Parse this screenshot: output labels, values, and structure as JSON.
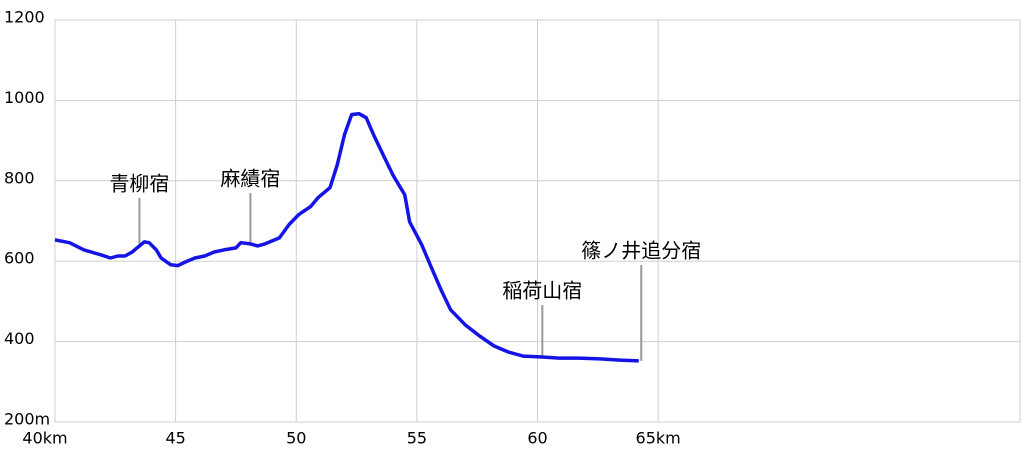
{
  "chart_data": {
    "type": "line",
    "x": [
      40,
      40.6,
      41.2,
      41.9,
      42.3,
      42.6,
      42.9,
      43.2,
      43.4,
      43.7,
      43.9,
      44.2,
      44.4,
      44.8,
      45.1,
      45.4,
      45.8,
      46.2,
      46.6,
      47.0,
      47.5,
      47.7,
      48.1,
      48.4,
      48.7,
      49.3,
      49.7,
      50.1,
      50.6,
      50.9,
      51.4,
      51.7,
      52.0,
      52.3,
      52.6,
      52.9,
      53.2,
      53.6,
      54.0,
      54.5,
      54.7,
      55.2,
      55.6,
      56.0,
      56.4,
      57.0,
      57.6,
      58.2,
      58.8,
      59.4,
      60.1,
      60.9,
      61.7,
      62.6,
      63.4,
      64.2
    ],
    "values": [
      653,
      646,
      628,
      616,
      608,
      613,
      613,
      623,
      633,
      648,
      646,
      628,
      608,
      591,
      589,
      598,
      608,
      613,
      623,
      628,
      633,
      646,
      643,
      638,
      643,
      658,
      691,
      716,
      736,
      758,
      783,
      840,
      915,
      965,
      967,
      957,
      915,
      865,
      815,
      765,
      698,
      641,
      584,
      529,
      479,
      442,
      414,
      389,
      374,
      364,
      362,
      359,
      359,
      357,
      354,
      352
    ],
    "color": "#1414e6",
    "xlim": [
      40,
      80
    ],
    "xticks": [
      {
        "value": 40,
        "label": "40km"
      },
      45,
      50,
      55,
      60,
      {
        "value": 65,
        "label": "65km"
      }
    ],
    "ylim": [
      200,
      1200
    ],
    "yticks": [
      {
        "value": 200,
        "label": "200m"
      },
      400,
      600,
      800,
      1000,
      1200
    ],
    "grid": true,
    "annotations": [
      {
        "text": "青柳宿",
        "x": 43.5
      },
      {
        "text": "麻績宿",
        "x": 48.1
      },
      {
        "text": "稲荷山宿",
        "x": 60.2
      },
      {
        "text": "篠ノ井追分宿",
        "x": 64.3
      }
    ]
  }
}
